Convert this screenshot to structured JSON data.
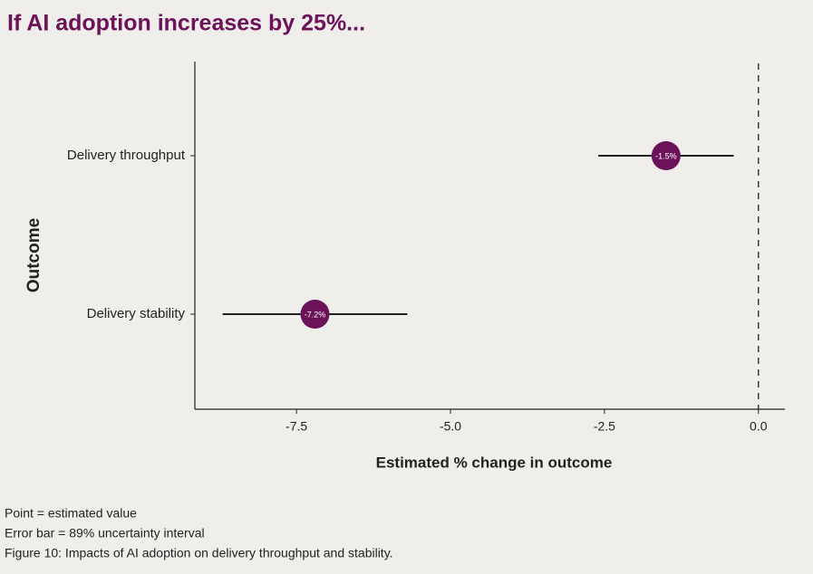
{
  "chart_data": {
    "type": "dot_errorbar",
    "title": "If AI adoption increases by 25%...",
    "xlabel": "Estimated % change in outcome",
    "ylabel": "Outcome",
    "categories": [
      "Delivery throughput",
      "Delivery stability"
    ],
    "values": [
      -1.5,
      -7.2
    ],
    "value_labels": [
      "-1.5%",
      "-7.2%"
    ],
    "lower": [
      -2.6,
      -8.7
    ],
    "upper": [
      -0.4,
      -5.7
    ],
    "color": "#6b1259",
    "xlim": [
      -9.15,
      0.43
    ],
    "xticks": [
      -7.5,
      {
        "value": -5,
        "label": "-5.0"
      },
      -2.5,
      {
        "value": 0,
        "label": "0.0"
      }
    ],
    "vline": 0,
    "notes": [
      "Point = estimated value",
      "Error bar = 89% uncertainty interval",
      "Figure 10: Impacts of AI adoption on delivery throughput and stability."
    ]
  }
}
